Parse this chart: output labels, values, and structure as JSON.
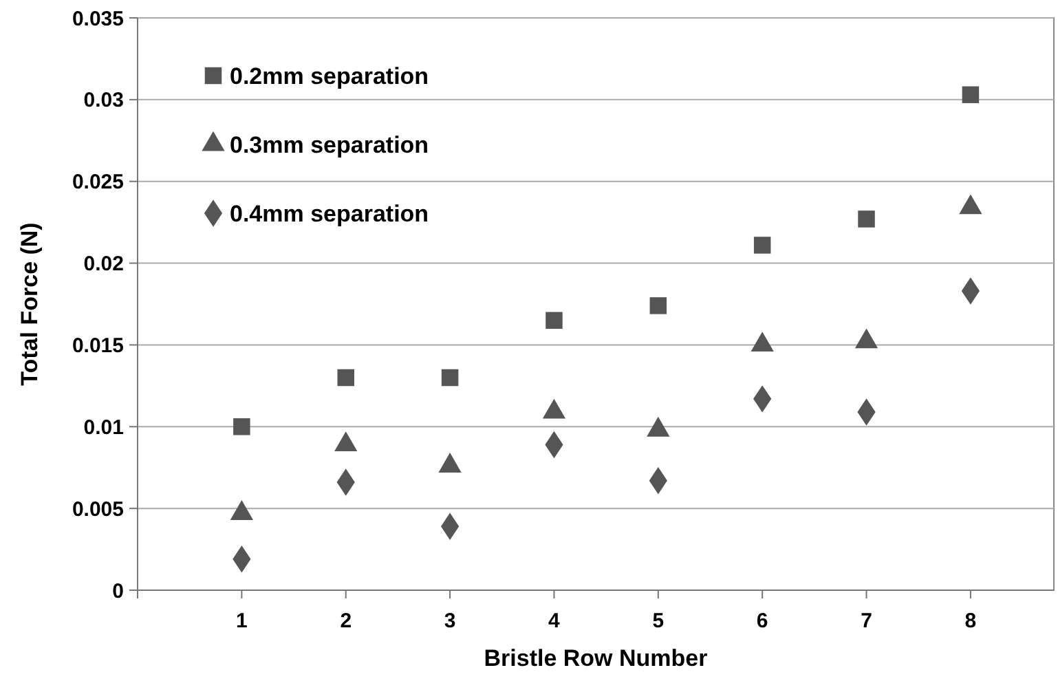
{
  "chart_data": {
    "type": "scatter",
    "xlabel": "Bristle Row Number",
    "ylabel": "Total Force (N)",
    "x": [
      1,
      2,
      3,
      4,
      5,
      6,
      7,
      8
    ],
    "xlim": [
      0,
      8.8
    ],
    "xticks": [
      {
        "value": 0,
        "label": null
      },
      1,
      2,
      3,
      4,
      5,
      6,
      7,
      8
    ],
    "ylim": [
      0,
      0.035
    ],
    "yticks": [
      0,
      0.005,
      0.01,
      0.015,
      0.02,
      0.025,
      0.03,
      0.035
    ],
    "grid": "y",
    "legend": "top left",
    "series": [
      {
        "name": "0.2mm separation",
        "color": "#555555",
        "marker": "square",
        "values": [
          0.01,
          0.013,
          0.013,
          0.0165,
          0.0174,
          0.0211,
          0.0227,
          0.0303
        ]
      },
      {
        "name": "0.3mm separation",
        "color": "#555555",
        "marker": "triangle",
        "values": [
          0.0047,
          0.0089,
          0.0076,
          0.0109,
          0.0098,
          0.015,
          0.0152,
          0.0234
        ]
      },
      {
        "name": "0.4mm separation",
        "color": "#555555",
        "marker": "diamond",
        "values": [
          0.0019,
          0.0066,
          0.0039,
          0.0089,
          0.0067,
          0.0117,
          0.0109,
          0.0183
        ]
      }
    ]
  }
}
